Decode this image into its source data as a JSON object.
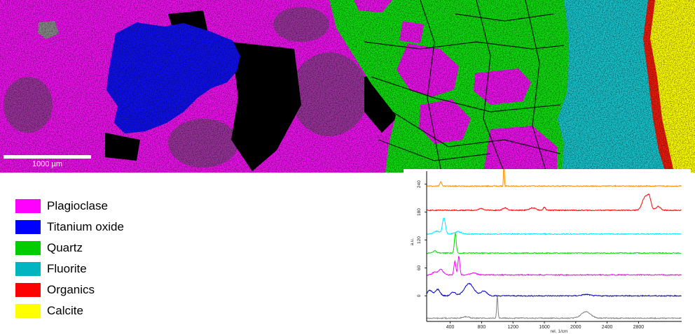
{
  "scale_bar": {
    "label": "1000 µm"
  },
  "map_colors": {
    "plagioclase": "#ee11ee",
    "plagioclase_dark": "#9a339c",
    "titanium_oxide": "#1010f0",
    "quartz": "#10dd10",
    "fluorite": "#18c4cc",
    "organics": "#ee1c0c",
    "calcite": "#ffff00",
    "unclassified": "#000000"
  },
  "legend": {
    "items": [
      {
        "label": "Plagioclase",
        "color": "#ff00ff"
      },
      {
        "label": "Titanium oxide",
        "color": "#0000ff"
      },
      {
        "label": "Quartz",
        "color": "#00cc00"
      },
      {
        "label": "Fluorite",
        "color": "#00b4c0"
      },
      {
        "label": "Organics",
        "color": "#ff0000"
      },
      {
        "label": "Calcite",
        "color": "#ffff00"
      }
    ]
  },
  "chart_data": {
    "type": "line",
    "title": "",
    "xlabel": "rel. 1/cm",
    "ylabel": "a.u.",
    "xlim": [
      100,
      3350
    ],
    "ylim": [
      -55,
      265
    ],
    "xticks": [
      400,
      800,
      1200,
      1600,
      2000,
      2400,
      2800
    ],
    "yticks": [
      0,
      60,
      120,
      180,
      240
    ],
    "grid": false,
    "series": [
      {
        "color": "#ff8a00",
        "baseline": 236,
        "peaks": [
          [
            280,
            10,
            12
          ],
          [
            1085,
            60,
            5
          ]
        ]
      },
      {
        "color": "#ff0000",
        "baseline": 184,
        "peaks": [
          [
            800,
            4,
            30
          ],
          [
            1100,
            5,
            30
          ],
          [
            1450,
            5,
            40
          ],
          [
            1600,
            6,
            15
          ],
          [
            2890,
            30,
            40
          ],
          [
            2940,
            18,
            20
          ],
          [
            3050,
            8,
            30
          ]
        ]
      },
      {
        "color": "#00e5ff",
        "baseline": 133,
        "peaks": [
          [
            320,
            35,
            18
          ],
          [
            230,
            6,
            40
          ],
          [
            500,
            5,
            40
          ]
        ]
      },
      {
        "color": "#00dd00",
        "baseline": 92,
        "peaks": [
          [
            465,
            42,
            12
          ],
          [
            200,
            5,
            20
          ]
        ]
      },
      {
        "color": "#ff00ff",
        "baseline": 45,
        "peaks": [
          [
            510,
            40,
            12
          ],
          [
            460,
            30,
            12
          ],
          [
            280,
            12,
            30
          ],
          [
            200,
            6,
            25
          ],
          [
            700,
            4,
            40
          ]
        ]
      },
      {
        "color": "#0000cc",
        "baseline": 0,
        "peaks": [
          [
            140,
            12,
            30
          ],
          [
            240,
            14,
            30
          ],
          [
            440,
            8,
            30
          ],
          [
            640,
            26,
            60
          ],
          [
            830,
            10,
            40
          ],
          [
            2130,
            3,
            50
          ]
        ]
      },
      {
        "color": "#808080",
        "baseline": -48,
        "peaks": [
          [
            1000,
            48,
            8
          ],
          [
            2130,
            14,
            60
          ],
          [
            600,
            3,
            40
          ]
        ]
      }
    ]
  }
}
